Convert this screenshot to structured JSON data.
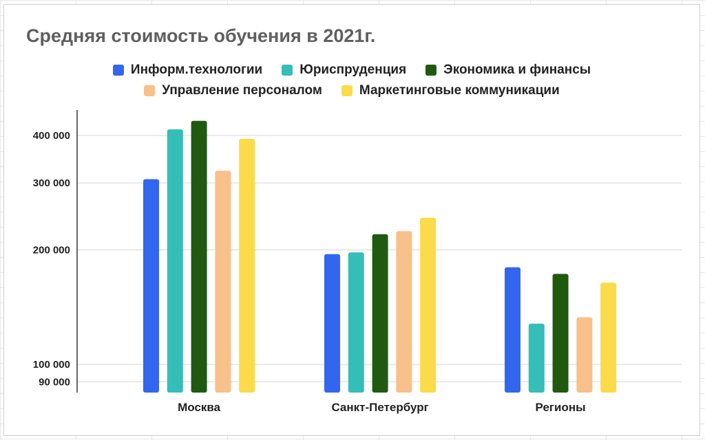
{
  "chart_data": {
    "type": "bar",
    "title": "Средняя стоимость обучения в 2021г.",
    "categories": [
      "Москва",
      "Санкт-Петербург",
      "Регионы"
    ],
    "series": [
      {
        "name": "Информ.технологии",
        "color": "#3366ee",
        "values": [
          307000,
          195000,
          180000
        ]
      },
      {
        "name": "Юриспруденция",
        "color": "#35bdb8",
        "values": [
          415000,
          197000,
          128000
        ]
      },
      {
        "name": "Экономика и финансы",
        "color": "#1f5a10",
        "values": [
          437000,
          220000,
          173000
        ]
      },
      {
        "name": "Управление персоналом",
        "color": "#f8c08a",
        "values": [
          323000,
          224000,
          133000
        ]
      },
      {
        "name": "Маркетинговые коммуникации",
        "color": "#fbdb4a",
        "values": [
          392000,
          243000,
          164000
        ]
      }
    ],
    "y_ticks": [
      {
        "value": 90000,
        "label": "90 000"
      },
      {
        "value": 100000,
        "label": "100 000"
      },
      {
        "value": 200000,
        "label": "200 000"
      },
      {
        "value": 300000,
        "label": "300 000"
      },
      {
        "value": 400000,
        "label": "400 000"
      }
    ],
    "ylim": [
      80000,
      450000
    ],
    "yscale": "log",
    "grid": true,
    "legend_position": "top"
  }
}
